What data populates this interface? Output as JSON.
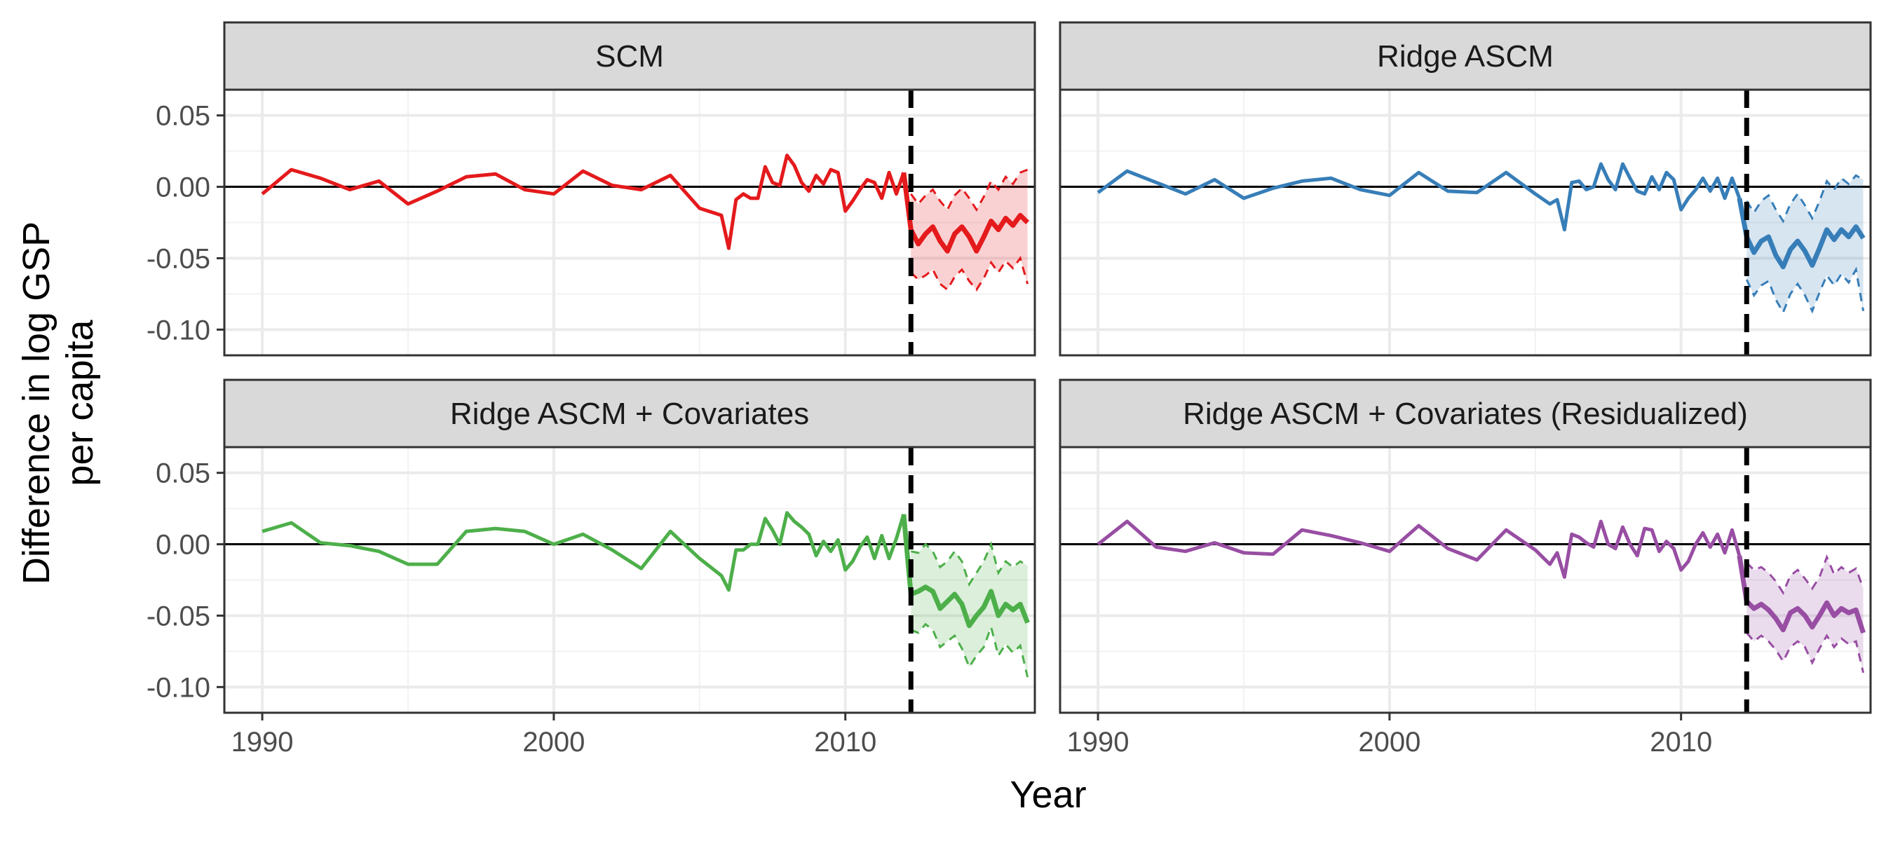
{
  "chart_data": {
    "type": "line",
    "xlabel": "Year",
    "ylabel_lines": [
      "Difference in log GSP",
      "per capita"
    ],
    "xlim": [
      1988.7,
      2016.5
    ],
    "ylim": [
      -0.118,
      0.068
    ],
    "x_ticks": [
      1990,
      2000,
      2010
    ],
    "x_tick_labels": [
      "1990",
      "2000",
      "2010"
    ],
    "y_ticks": [
      0.05,
      0,
      -0.05,
      -0.1
    ],
    "y_tick_labels": [
      "0.05",
      "0.00",
      "-0.05",
      "-0.10"
    ],
    "treatment_year": 2012.25,
    "reference_line": 0,
    "grid": true,
    "panels": [
      {
        "title": "SCM",
        "color": "#e41a1c",
        "pre": {
          "x": [
            1990,
            1991,
            1992,
            1993,
            1994,
            1995,
            1996,
            1997,
            1998,
            1999,
            2000,
            2001,
            2002,
            2003,
            2004,
            2005,
            2005.75,
            2006,
            2006.25,
            2006.5,
            2006.75,
            2007,
            2007.25,
            2007.5,
            2007.75,
            2008,
            2008.25,
            2008.5,
            2008.75,
            2009,
            2009.25,
            2009.5,
            2009.75,
            2010,
            2010.25,
            2010.5,
            2010.75,
            2011,
            2011.25,
            2011.5,
            2011.75,
            2012
          ],
          "y": [
            -0.005,
            0.012,
            0.006,
            -0.002,
            0.004,
            -0.012,
            -0.003,
            0.007,
            0.009,
            -0.002,
            -0.005,
            0.011,
            0.001,
            -0.002,
            0.008,
            -0.015,
            -0.02,
            -0.043,
            -0.009,
            -0.005,
            -0.008,
            -0.008,
            0.014,
            0.003,
            0.001,
            0.022,
            0.015,
            0.003,
            -0.003,
            0.008,
            0.002,
            0.012,
            0.01,
            -0.017,
            -0.01,
            -0.002,
            0.005,
            0.003,
            -0.008,
            0.01,
            -0.005,
            0.01
          ]
        },
        "post": {
          "x": [
            2012.25,
            2012.5,
            2012.75,
            2013,
            2013.25,
            2013.5,
            2013.75,
            2014,
            2014.25,
            2014.5,
            2014.75,
            2015,
            2015.25,
            2015.5,
            2015.75,
            2016,
            2016.25
          ],
          "y": [
            -0.03,
            -0.04,
            -0.033,
            -0.028,
            -0.038,
            -0.045,
            -0.033,
            -0.028,
            -0.035,
            -0.045,
            -0.035,
            -0.024,
            -0.03,
            -0.022,
            -0.027,
            -0.02,
            -0.025
          ],
          "lower": [
            -0.06,
            -0.065,
            -0.062,
            -0.058,
            -0.068,
            -0.072,
            -0.063,
            -0.058,
            -0.066,
            -0.072,
            -0.064,
            -0.053,
            -0.06,
            -0.052,
            -0.057,
            -0.05,
            -0.068
          ],
          "upper": [
            -0.005,
            -0.012,
            -0.006,
            -0.002,
            -0.01,
            -0.016,
            -0.006,
            -0.001,
            -0.008,
            -0.016,
            -0.007,
            0.004,
            -0.002,
            0.007,
            0.002,
            0.01,
            0.012
          ]
        }
      },
      {
        "title": "Ridge ASCM",
        "color": "#377eb8",
        "pre": {
          "x": [
            1990,
            1991,
            1992,
            1993,
            1994,
            1995,
            1996,
            1997,
            1998,
            1999,
            2000,
            2001,
            2002,
            2003,
            2004,
            2005,
            2005.5,
            2005.75,
            2006,
            2006.25,
            2006.5,
            2006.75,
            2007,
            2007.25,
            2007.5,
            2007.75,
            2008,
            2008.25,
            2008.5,
            2008.75,
            2009,
            2009.25,
            2009.5,
            2009.75,
            2010,
            2010.25,
            2010.5,
            2010.75,
            2011,
            2011.25,
            2011.5,
            2011.75,
            2012
          ],
          "y": [
            -0.004,
            0.011,
            0.003,
            -0.005,
            0.005,
            -0.008,
            -0.001,
            0.004,
            0.006,
            -0.002,
            -0.006,
            0.01,
            -0.003,
            -0.004,
            0.01,
            -0.005,
            -0.012,
            -0.009,
            -0.03,
            0.003,
            0.004,
            -0.002,
            0.0,
            0.016,
            0.005,
            -0.002,
            0.016,
            0.006,
            -0.003,
            -0.005,
            0.007,
            -0.002,
            0.01,
            0.005,
            -0.016,
            -0.008,
            -0.002,
            0.006,
            -0.003,
            0.006,
            -0.008,
            0.006,
            -0.008
          ]
        },
        "post": {
          "x": [
            2012.25,
            2012.5,
            2012.75,
            2013,
            2013.25,
            2013.5,
            2013.75,
            2014,
            2014.25,
            2014.5,
            2014.75,
            2015,
            2015.25,
            2015.5,
            2015.75,
            2016,
            2016.25
          ],
          "y": [
            -0.035,
            -0.046,
            -0.038,
            -0.035,
            -0.048,
            -0.056,
            -0.044,
            -0.038,
            -0.045,
            -0.055,
            -0.043,
            -0.03,
            -0.037,
            -0.03,
            -0.035,
            -0.028,
            -0.036
          ],
          "lower": [
            -0.065,
            -0.076,
            -0.069,
            -0.066,
            -0.079,
            -0.088,
            -0.075,
            -0.068,
            -0.076,
            -0.087,
            -0.074,
            -0.062,
            -0.069,
            -0.061,
            -0.067,
            -0.058,
            -0.087
          ],
          "upper": [
            -0.01,
            -0.018,
            -0.01,
            -0.006,
            -0.016,
            -0.024,
            -0.012,
            -0.005,
            -0.013,
            -0.022,
            -0.01,
            0.004,
            -0.002,
            0.006,
            0.002,
            0.008,
            0.005
          ]
        }
      },
      {
        "title": "Ridge ASCM + Covariates",
        "color": "#4daf4a",
        "pre": {
          "x": [
            1990,
            1991,
            1992,
            1993,
            1994,
            1995,
            1996,
            1997,
            1998,
            1999,
            2000,
            2001,
            2002,
            2003,
            2004,
            2005,
            2005.75,
            2006,
            2006.25,
            2006.5,
            2006.75,
            2007,
            2007.25,
            2007.5,
            2007.75,
            2008,
            2008.25,
            2008.5,
            2008.75,
            2009,
            2009.25,
            2009.5,
            2009.75,
            2010,
            2010.25,
            2010.5,
            2010.75,
            2011,
            2011.25,
            2011.5,
            2011.75,
            2012
          ],
          "y": [
            0.009,
            0.015,
            0.001,
            -0.001,
            -0.005,
            -0.014,
            -0.014,
            0.009,
            0.011,
            0.009,
            0.0,
            0.007,
            -0.004,
            -0.017,
            0.009,
            -0.01,
            -0.022,
            -0.032,
            -0.004,
            -0.004,
            0.0,
            0.0,
            0.018,
            0.01,
            0.0,
            0.022,
            0.016,
            0.012,
            0.007,
            -0.008,
            0.002,
            -0.005,
            0.003,
            -0.018,
            -0.012,
            -0.002,
            0.005,
            -0.01,
            0.006,
            -0.01,
            0.004,
            0.021
          ]
        },
        "post": {
          "x": [
            2012.25,
            2012.5,
            2012.75,
            2013,
            2013.25,
            2013.5,
            2013.75,
            2014,
            2014.25,
            2014.5,
            2014.75,
            2015,
            2015.25,
            2015.5,
            2015.75,
            2016,
            2016.25
          ],
          "y": [
            -0.035,
            -0.033,
            -0.03,
            -0.033,
            -0.045,
            -0.04,
            -0.035,
            -0.042,
            -0.057,
            -0.05,
            -0.044,
            -0.033,
            -0.05,
            -0.042,
            -0.046,
            -0.042,
            -0.055
          ],
          "lower": [
            -0.06,
            -0.062,
            -0.056,
            -0.06,
            -0.072,
            -0.068,
            -0.064,
            -0.073,
            -0.086,
            -0.078,
            -0.072,
            -0.058,
            -0.078,
            -0.07,
            -0.076,
            -0.071,
            -0.093
          ],
          "upper": [
            -0.005,
            -0.006,
            0.0,
            -0.005,
            -0.016,
            -0.012,
            -0.005,
            -0.012,
            -0.028,
            -0.02,
            -0.012,
            0.0,
            -0.02,
            -0.012,
            -0.016,
            -0.012,
            -0.015
          ]
        }
      },
      {
        "title": "Ridge ASCM + Covariates (Residualized)",
        "color": "#984ea3",
        "pre": {
          "x": [
            1990,
            1991,
            1992,
            1993,
            1994,
            1995,
            1996,
            1997,
            1998,
            1999,
            2000,
            2001,
            2002,
            2003,
            2004,
            2005,
            2005.5,
            2005.75,
            2006,
            2006.25,
            2006.5,
            2006.75,
            2007,
            2007.25,
            2007.5,
            2007.75,
            2008,
            2008.25,
            2008.5,
            2008.75,
            2009,
            2009.25,
            2009.5,
            2009.75,
            2010,
            2010.25,
            2010.5,
            2010.75,
            2011,
            2011.25,
            2011.5,
            2011.75,
            2012
          ],
          "y": [
            0.0,
            0.016,
            -0.002,
            -0.005,
            0.001,
            -0.006,
            -0.007,
            0.01,
            0.006,
            0.001,
            -0.005,
            0.013,
            -0.003,
            -0.011,
            0.01,
            -0.004,
            -0.014,
            -0.006,
            -0.023,
            0.007,
            0.005,
            0.001,
            -0.002,
            0.016,
            0.0,
            -0.003,
            0.012,
            0.0,
            -0.008,
            0.011,
            0.01,
            -0.005,
            0.002,
            -0.003,
            -0.018,
            -0.012,
            0.0,
            0.008,
            -0.002,
            0.007,
            -0.006,
            0.01,
            -0.008
          ]
        },
        "post": {
          "x": [
            2012.25,
            2012.5,
            2012.75,
            2013,
            2013.25,
            2013.5,
            2013.75,
            2014,
            2014.25,
            2014.5,
            2014.75,
            2015,
            2015.25,
            2015.5,
            2015.75,
            2016,
            2016.25
          ],
          "y": [
            -0.04,
            -0.045,
            -0.042,
            -0.046,
            -0.052,
            -0.06,
            -0.048,
            -0.045,
            -0.05,
            -0.058,
            -0.05,
            -0.041,
            -0.05,
            -0.045,
            -0.048,
            -0.046,
            -0.062
          ],
          "lower": [
            -0.062,
            -0.068,
            -0.064,
            -0.068,
            -0.074,
            -0.082,
            -0.072,
            -0.068,
            -0.072,
            -0.083,
            -0.073,
            -0.064,
            -0.072,
            -0.066,
            -0.07,
            -0.068,
            -0.09
          ],
          "upper": [
            -0.013,
            -0.018,
            -0.016,
            -0.02,
            -0.026,
            -0.034,
            -0.022,
            -0.018,
            -0.024,
            -0.031,
            -0.023,
            -0.009,
            -0.021,
            -0.016,
            -0.02,
            -0.017,
            -0.031
          ]
        }
      }
    ]
  }
}
